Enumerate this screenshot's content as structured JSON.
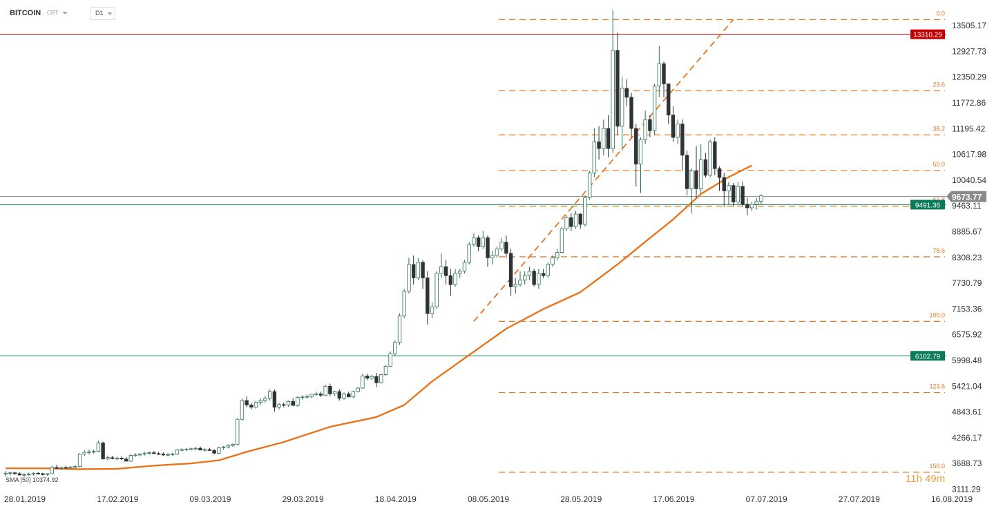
{
  "header": {
    "symbol": "BITCOIN",
    "source": "CRT",
    "timeframe": "D1"
  },
  "countdown": "11h 49m",
  "ma_legend": "SMA [50] 10374.92",
  "colors": {
    "up": "#ffffff",
    "down": "#2f3337",
    "fib": "#e8741d",
    "ma": "#e8741d",
    "resistance": "#c00000",
    "support": "#0a7a5a",
    "current": "#8a8a8a"
  },
  "chart_data": {
    "type": "candlestick",
    "title": "",
    "xlabel": "",
    "ylabel": "",
    "ylim": [
      3111.29,
      13850
    ],
    "y_ticks": [
      13505.17,
      12927.73,
      12350.29,
      11772.86,
      11195.42,
      10617.98,
      10040.54,
      9463.11,
      8885.67,
      8308.23,
      7730.79,
      7153.36,
      6575.92,
      5998.48,
      5421.04,
      4843.61,
      4266.17,
      3688.73,
      3111.29
    ],
    "x_ticks": [
      "28.01.2019",
      "17.02.2019",
      "09.03.2019",
      "29.03.2019",
      "18.04.2019",
      "08.05.2019",
      "28.05.2019",
      "17.06.2019",
      "07.07.2019",
      "27.07.2019",
      "16.08.2019"
    ],
    "x_start": "2019-01-28",
    "horizontal_levels": [
      {
        "label": "13310.29",
        "value": 13310.29,
        "color": "#c00000"
      },
      {
        "label": "9491.36",
        "value": 9491.36,
        "color": "#0a7a5a"
      },
      {
        "label": "6102.79",
        "value": 6102.79,
        "color": "#0a7a5a"
      }
    ],
    "current_price": {
      "label": "9673.77",
      "value": 9673.77
    },
    "fibonacci": {
      "start_date": "2019-05-09",
      "start_price": 6875,
      "end_date": "2019-07-04",
      "end_price": 13640,
      "levels": [
        {
          "ratio": "0.0",
          "value": 13640
        },
        {
          "ratio": "23.6",
          "value": 12043
        },
        {
          "ratio": "38.2",
          "value": 11055
        },
        {
          "ratio": "50.0",
          "value": 10257
        },
        {
          "ratio": "61.8",
          "value": 9459
        },
        {
          "ratio": "78.6",
          "value": 8322
        },
        {
          "ratio": "100.0",
          "value": 6875
        },
        {
          "ratio": "123.6",
          "value": 5278
        },
        {
          "ratio": "150.0",
          "value": 3492
        }
      ]
    },
    "candles": [
      [
        3460,
        3520,
        3400,
        3470
      ],
      [
        3470,
        3510,
        3420,
        3480
      ],
      [
        3480,
        3500,
        3440,
        3460
      ],
      [
        3460,
        3490,
        3420,
        3430
      ],
      [
        3430,
        3470,
        3400,
        3440
      ],
      [
        3440,
        3480,
        3410,
        3450
      ],
      [
        3450,
        3490,
        3420,
        3470
      ],
      [
        3470,
        3500,
        3440,
        3460
      ],
      [
        3460,
        3480,
        3420,
        3440
      ],
      [
        3440,
        3470,
        3410,
        3460
      ],
      [
        3460,
        3630,
        3450,
        3600
      ],
      [
        3600,
        3660,
        3560,
        3580
      ],
      [
        3580,
        3620,
        3540,
        3600
      ],
      [
        3600,
        3640,
        3560,
        3590
      ],
      [
        3590,
        3630,
        3550,
        3610
      ],
      [
        3610,
        3650,
        3580,
        3620
      ],
      [
        3620,
        3920,
        3600,
        3900
      ],
      [
        3900,
        3980,
        3860,
        3940
      ],
      [
        3940,
        4000,
        3890,
        3950
      ],
      [
        3950,
        4000,
        3910,
        3960
      ],
      [
        3960,
        4200,
        3940,
        4150
      ],
      [
        4150,
        4180,
        3780,
        3790
      ],
      [
        3790,
        3860,
        3760,
        3820
      ],
      [
        3820,
        3860,
        3780,
        3800
      ],
      [
        3800,
        3840,
        3760,
        3810
      ],
      [
        3810,
        3850,
        3770,
        3790
      ],
      [
        3790,
        3830,
        3750,
        3740
      ],
      [
        3740,
        3900,
        3720,
        3870
      ],
      [
        3870,
        3920,
        3840,
        3880
      ],
      [
        3880,
        3920,
        3850,
        3900
      ],
      [
        3900,
        3950,
        3870,
        3920
      ],
      [
        3920,
        3960,
        3890,
        3930
      ],
      [
        3930,
        3970,
        3900,
        3910
      ],
      [
        3910,
        3950,
        3880,
        3900
      ],
      [
        3900,
        3940,
        3860,
        3880
      ],
      [
        3880,
        3920,
        3850,
        3890
      ],
      [
        3890,
        3930,
        3860,
        3900
      ],
      [
        3900,
        4010,
        3880,
        3990
      ],
      [
        3990,
        4030,
        3960,
        4000
      ],
      [
        4000,
        4040,
        3970,
        4010
      ],
      [
        4010,
        4050,
        3980,
        4020
      ],
      [
        4020,
        4060,
        3990,
        4030
      ],
      [
        4030,
        4070,
        4000,
        3990
      ],
      [
        3990,
        4030,
        3960,
        4000
      ],
      [
        4000,
        4040,
        3970,
        3980
      ],
      [
        3980,
        4010,
        3900,
        3920
      ],
      [
        3920,
        4060,
        3900,
        4040
      ],
      [
        4040,
        4080,
        4000,
        4060
      ],
      [
        4060,
        4120,
        4030,
        4090
      ],
      [
        4090,
        4140,
        4060,
        4120
      ],
      [
        4120,
        4700,
        4100,
        4680
      ],
      [
        4680,
        5150,
        4650,
        5100
      ],
      [
        5100,
        5200,
        4950,
        5000
      ],
      [
        5000,
        5050,
        4900,
        4950
      ],
      [
        4950,
        5100,
        4920,
        5060
      ],
      [
        5060,
        5150,
        5000,
        5100
      ],
      [
        5100,
        5200,
        5050,
        5150
      ],
      [
        5150,
        5350,
        5100,
        5300
      ],
      [
        5300,
        5350,
        4850,
        4950
      ],
      [
        4950,
        5050,
        4900,
        5010
      ],
      [
        5010,
        5060,
        4950,
        5000
      ],
      [
        5000,
        5100,
        4960,
        5080
      ],
      [
        5080,
        5150,
        5000,
        4990
      ],
      [
        4990,
        5200,
        4960,
        5170
      ],
      [
        5170,
        5220,
        5120,
        5180
      ],
      [
        5180,
        5240,
        5140,
        5190
      ],
      [
        5190,
        5250,
        5150,
        5240
      ],
      [
        5240,
        5300,
        5200,
        5250
      ],
      [
        5250,
        5300,
        5180,
        5220
      ],
      [
        5220,
        5450,
        5200,
        5420
      ],
      [
        5420,
        5480,
        5200,
        5250
      ],
      [
        5250,
        5320,
        5200,
        5300
      ],
      [
        5300,
        5350,
        5100,
        5150
      ],
      [
        5150,
        5280,
        5120,
        5250
      ],
      [
        5250,
        5300,
        5200,
        5180
      ],
      [
        5180,
        5320,
        5160,
        5300
      ],
      [
        5300,
        5400,
        5280,
        5380
      ],
      [
        5380,
        5700,
        5360,
        5650
      ],
      [
        5650,
        5700,
        5550,
        5600
      ],
      [
        5600,
        5680,
        5560,
        5640
      ],
      [
        5640,
        5720,
        5400,
        5500
      ],
      [
        5500,
        5700,
        5480,
        5680
      ],
      [
        5680,
        5900,
        5650,
        5870
      ],
      [
        5870,
        6200,
        5850,
        6150
      ],
      [
        6150,
        6450,
        6100,
        6400
      ],
      [
        6400,
        7050,
        6350,
        7000
      ],
      [
        7000,
        7600,
        6950,
        7550
      ],
      [
        7550,
        8300,
        7500,
        8150
      ],
      [
        8150,
        8350,
        7700,
        7850
      ],
      [
        7850,
        8300,
        7800,
        8200
      ],
      [
        8200,
        8250,
        7600,
        7850
      ],
      [
        7850,
        8000,
        6800,
        7050
      ],
      [
        7050,
        7300,
        6950,
        7200
      ],
      [
        7200,
        8000,
        7150,
        7950
      ],
      [
        7950,
        8400,
        7850,
        8100
      ],
      [
        8100,
        8250,
        7700,
        7900
      ],
      [
        7900,
        8050,
        7450,
        7700
      ],
      [
        7700,
        8050,
        7650,
        7950
      ],
      [
        7950,
        8050,
        7850,
        8000
      ],
      [
        8000,
        8250,
        7950,
        8200
      ],
      [
        8200,
        8650,
        8150,
        8600
      ],
      [
        8600,
        8850,
        8550,
        8750
      ],
      [
        8750,
        8800,
        8450,
        8550
      ],
      [
        8550,
        8900,
        8500,
        8750
      ],
      [
        8750,
        8800,
        8100,
        8300
      ],
      [
        8300,
        8450,
        8150,
        8350
      ],
      [
        8350,
        8550,
        8300,
        8500
      ],
      [
        8500,
        8750,
        8450,
        8650
      ],
      [
        8650,
        8800,
        8300,
        8400
      ],
      [
        8400,
        8500,
        7450,
        7650
      ],
      [
        7650,
        7850,
        7500,
        7700
      ],
      [
        7700,
        8000,
        7650,
        7800
      ],
      [
        7800,
        8000,
        7700,
        7900
      ],
      [
        7900,
        8100,
        7800,
        8000
      ],
      [
        8000,
        8050,
        7650,
        7700
      ],
      [
        7700,
        8050,
        7600,
        7950
      ],
      [
        7950,
        8050,
        7850,
        7900
      ],
      [
        7900,
        8200,
        7850,
        8150
      ],
      [
        8150,
        8350,
        8100,
        8300
      ],
      [
        8300,
        8500,
        8250,
        8420
      ],
      [
        8420,
        9000,
        8400,
        8950
      ],
      [
        8950,
        9250,
        8900,
        9200
      ],
      [
        9200,
        9300,
        8900,
        9000
      ],
      [
        9000,
        9350,
        8950,
        9280
      ],
      [
        9280,
        9300,
        8950,
        9050
      ],
      [
        9050,
        9700,
        9000,
        9650
      ],
      [
        9650,
        10250,
        9600,
        10200
      ],
      [
        10200,
        11200,
        10100,
        10900
      ],
      [
        10900,
        11250,
        10500,
        10750
      ],
      [
        10750,
        11400,
        10600,
        11200
      ],
      [
        11200,
        11500,
        10550,
        10750
      ],
      [
        10750,
        13850,
        10650,
        12950
      ],
      [
        12950,
        13350,
        11050,
        11250
      ],
      [
        11250,
        12350,
        10700,
        12100
      ],
      [
        12100,
        12300,
        11700,
        11900
      ],
      [
        11900,
        12000,
        11000,
        11200
      ],
      [
        11200,
        11300,
        9900,
        10400
      ],
      [
        10400,
        11000,
        9750,
        10950
      ],
      [
        10950,
        11600,
        10850,
        11400
      ],
      [
        11400,
        11500,
        11000,
        11150
      ],
      [
        11150,
        12200,
        11050,
        12150
      ],
      [
        12150,
        13050,
        11900,
        12650
      ],
      [
        12650,
        12700,
        11900,
        12200
      ],
      [
        12200,
        12200,
        11300,
        11500
      ],
      [
        11500,
        11700,
        10900,
        11000
      ],
      [
        11000,
        11400,
        10850,
        11300
      ],
      [
        11300,
        11400,
        10250,
        10600
      ],
      [
        10600,
        10700,
        9700,
        9850
      ],
      [
        9850,
        10300,
        9300,
        10250
      ],
      [
        10250,
        10800,
        9650,
        9850
      ],
      [
        9850,
        10850,
        9750,
        10500
      ],
      [
        10500,
        10650,
        10100,
        10150
      ],
      [
        10150,
        10950,
        10100,
        10900
      ],
      [
        10900,
        11000,
        10150,
        10300
      ],
      [
        10300,
        10350,
        9800,
        10100
      ],
      [
        10100,
        10200,
        9450,
        9800
      ],
      [
        9800,
        10000,
        9500,
        9920
      ],
      [
        9920,
        9980,
        9450,
        9550
      ],
      [
        9550,
        10000,
        9500,
        9900
      ],
      [
        9900,
        10000,
        9450,
        9500
      ],
      [
        9500,
        9650,
        9250,
        9420
      ],
      [
        9420,
        9560,
        9350,
        9500
      ],
      [
        9500,
        9640,
        9380,
        9570
      ],
      [
        9570,
        9720,
        9500,
        9690
      ]
    ],
    "sma50": [
      [
        0,
        3580
      ],
      [
        8,
        3580
      ],
      [
        16,
        3560
      ],
      [
        24,
        3570
      ],
      [
        32,
        3640
      ],
      [
        40,
        3690
      ],
      [
        46,
        3760
      ],
      [
        52,
        3950
      ],
      [
        60,
        4170
      ],
      [
        70,
        4510
      ],
      [
        80,
        4730
      ],
      [
        86,
        5000
      ],
      [
        92,
        5530
      ],
      [
        100,
        6120
      ],
      [
        108,
        6710
      ],
      [
        116,
        7150
      ],
      [
        124,
        7530
      ],
      [
        132,
        8150
      ],
      [
        138,
        8660
      ],
      [
        144,
        9160
      ],
      [
        150,
        9730
      ],
      [
        156,
        10110
      ],
      [
        161,
        10370
      ]
    ]
  }
}
